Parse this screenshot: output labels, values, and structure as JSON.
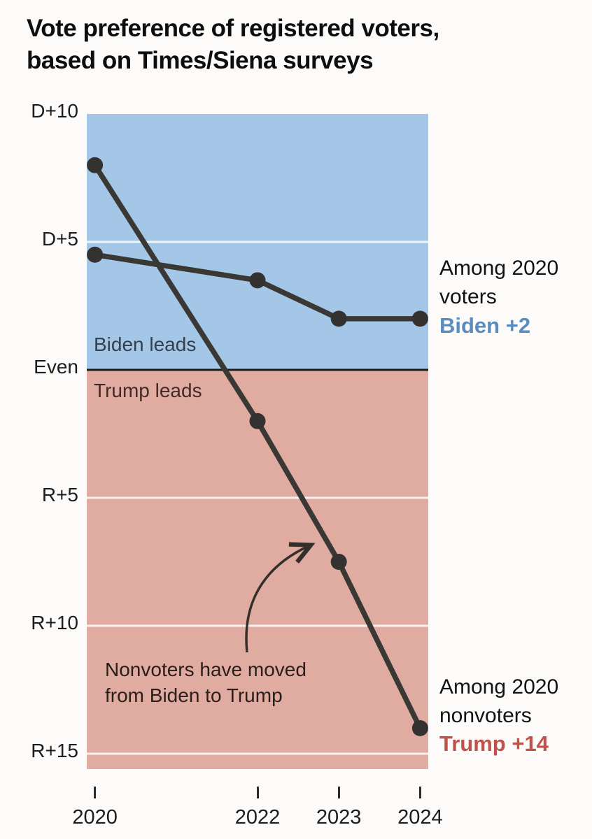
{
  "title": {
    "line1": "Vote preference of registered voters,",
    "line2": "based on Times/Siena surveys"
  },
  "colors": {
    "blue_region": "#a5c7e7",
    "pink_region": "#e0aca1",
    "line": "#3a3835",
    "point_fill": "#343230",
    "even_line": "#1b1b1b",
    "gridline_white": "#fefefe",
    "arrow": "#33302c",
    "biden_blue": "#5b8cbd",
    "trump_red": "#c0524b",
    "biden_leads_text": "#333f4d",
    "trump_leads_text": "#432a28"
  },
  "chart_data": {
    "type": "line",
    "title": "Vote preference of registered voters, based on Times/Siena surveys",
    "x": [
      2020,
      2022,
      2023,
      2024
    ],
    "x_tick_labels": [
      "2020",
      "2022",
      "2023",
      "2024"
    ],
    "xlim": [
      2019.9,
      2024.1
    ],
    "ylim": [
      -15.6,
      10
    ],
    "y_ticks": [
      {
        "value": 10,
        "label": "D+10"
      },
      {
        "value": 5,
        "label": "D+5"
      },
      {
        "value": 0,
        "label": "Even"
      },
      {
        "value": -5,
        "label": "R+5"
      },
      {
        "value": -10,
        "label": "R+10"
      },
      {
        "value": -15,
        "label": "R+15"
      }
    ],
    "white_gridlines": [
      5,
      -5,
      -10,
      -15
    ],
    "even_value": 0,
    "grid": "horizontal-only",
    "legend_position": "right-of-line-ends",
    "series": [
      {
        "name": "Among 2020 voters",
        "values": [
          4.5,
          3.5,
          2,
          2
        ],
        "final_label": "Biden +2"
      },
      {
        "name": "Among 2020 nonvoters",
        "values": [
          8,
          -2,
          -7.5,
          -14
        ],
        "final_label": "Trump +14"
      }
    ],
    "regions": [
      {
        "label": "Biden leads",
        "range": [
          0,
          10
        ]
      },
      {
        "label": "Trump leads",
        "range": [
          -15.6,
          0
        ]
      }
    ],
    "annotation": {
      "line1": "Nonvoters have moved",
      "line2": "from Biden to Trump",
      "arrow_points_to": "2023 nonvoters data point"
    }
  }
}
